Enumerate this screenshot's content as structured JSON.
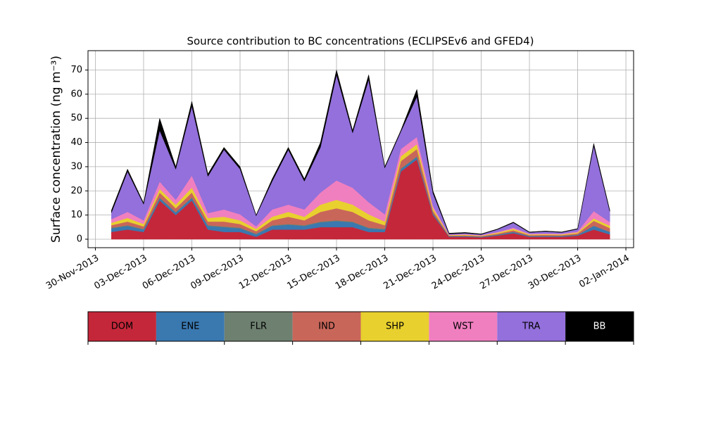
{
  "chart_data": {
    "type": "stacked_area",
    "title": "Source contribution to BC concentrations (ECLIPSEv6 and GFED4)",
    "y_label": "Surface concentration (ng m⁻³)",
    "x": [
      "2013-12-01",
      "2013-12-02",
      "2013-12-03",
      "2013-12-04",
      "2013-12-05",
      "2013-12-06",
      "2013-12-07",
      "2013-12-08",
      "2013-12-09",
      "2013-12-10",
      "2013-12-11",
      "2013-12-12",
      "2013-12-13",
      "2013-12-14",
      "2013-12-15",
      "2013-12-16",
      "2013-12-17",
      "2013-12-18",
      "2013-12-19",
      "2013-12-20",
      "2013-12-21",
      "2013-12-22",
      "2013-12-23",
      "2013-12-24",
      "2013-12-25",
      "2013-12-26",
      "2013-12-27",
      "2013-12-28",
      "2013-12-29",
      "2013-12-30",
      "2013-12-31",
      "2014-01-01"
    ],
    "series": [
      {
        "name": "DOM",
        "color": "#c4273a",
        "values": [
          3,
          4,
          3,
          16,
          10,
          16,
          4,
          3,
          3,
          1,
          4,
          4,
          4,
          5,
          5,
          5,
          3,
          3,
          28,
          33,
          10,
          1,
          1,
          0.8,
          1.5,
          2.5,
          1,
          1,
          1,
          1.5,
          4,
          2
        ]
      },
      {
        "name": "ENE",
        "color": "#3a78b0",
        "values": [
          1.5,
          1.5,
          1,
          1,
          1,
          1,
          1.5,
          2,
          1.5,
          1,
          1.5,
          2,
          1.5,
          2,
          2.5,
          2,
          1.5,
          1,
          1,
          1,
          0.5,
          0.2,
          0.2,
          0.2,
          0.3,
          0.5,
          0.3,
          0.3,
          0.3,
          0.3,
          1.5,
          1
        ]
      },
      {
        "name": "FLR",
        "color": "#6e8070",
        "values": [
          0.3,
          0.3,
          0.3,
          0.3,
          0.3,
          0.3,
          0.3,
          0.3,
          0.3,
          0.3,
          0.3,
          0.3,
          0.3,
          0.3,
          0.3,
          0.3,
          0.3,
          0.3,
          0.3,
          0.3,
          0.3,
          0.1,
          0.1,
          0.1,
          0.1,
          0.1,
          0.1,
          0.1,
          0.1,
          0.1,
          0.1,
          0.1
        ]
      },
      {
        "name": "IND",
        "color": "#c9665a",
        "values": [
          1,
          1.5,
          1,
          2,
          1.5,
          2,
          1.5,
          2,
          1.5,
          1,
          2,
          3,
          2,
          4,
          5,
          4,
          3,
          1.5,
          3,
          3,
          1,
          0.2,
          0.3,
          0.2,
          0.4,
          0.6,
          0.3,
          0.4,
          0.3,
          0.5,
          2,
          1.5
        ]
      },
      {
        "name": "SHP",
        "color": "#e8d02e",
        "values": [
          1,
          1.5,
          1,
          1.5,
          1.5,
          2,
          1.5,
          2,
          1.5,
          1,
          1.5,
          2,
          1.5,
          3,
          3.5,
          3,
          2.5,
          1.5,
          2,
          2,
          1,
          0.2,
          0.3,
          0.2,
          0.4,
          0.6,
          0.3,
          0.3,
          0.3,
          0.4,
          1,
          1
        ]
      },
      {
        "name": "WST",
        "color": "#f07fbf",
        "values": [
          1.5,
          2.5,
          1.5,
          3,
          2,
          5,
          2,
          3,
          2.5,
          1,
          3,
          3,
          3,
          5,
          8,
          7,
          5,
          3,
          3,
          3,
          1,
          0.2,
          0.2,
          0.2,
          0.3,
          0.5,
          0.3,
          0.3,
          0.3,
          0.4,
          3,
          1.5
        ]
      },
      {
        "name": "TRA",
        "color": "#9370db",
        "values": [
          2.7,
          16.7,
          6.7,
          21.2,
          12.7,
          28.7,
          15.2,
          24.7,
          18.7,
          4.4,
          11.7,
          22.7,
          11.7,
          18.7,
          43.7,
          22.7,
          50.7,
          19.2,
          7.2,
          16.7,
          5.2,
          0.3,
          0.4,
          0.3,
          1,
          2,
          0.5,
          0.8,
          0.5,
          1,
          27,
          4.4
        ]
      },
      {
        "name": "BB",
        "color": "#000000",
        "values": [
          1,
          1,
          0.5,
          5,
          1,
          2,
          1,
          1,
          1,
          0.3,
          1,
          1,
          1,
          2,
          2,
          1,
          2,
          0.5,
          0.5,
          3,
          1,
          0.3,
          0.3,
          0.2,
          0.2,
          0.3,
          0.2,
          0.2,
          0.2,
          0.2,
          1,
          0.5
        ]
      }
    ],
    "xlim": [
      "2013-11-29T13:00",
      "2014-01-02T11:30"
    ],
    "xticks": [
      {
        "value": "2013-11-30",
        "label": "30-Nov-2013"
      },
      {
        "value": "2013-12-03",
        "label": "03-Dec-2013"
      },
      {
        "value": "2013-12-06",
        "label": "06-Dec-2013"
      },
      {
        "value": "2013-12-09",
        "label": "09-Dec-2013"
      },
      {
        "value": "2013-12-12",
        "label": "12-Dec-2013"
      },
      {
        "value": "2013-12-15",
        "label": "15-Dec-2013"
      },
      {
        "value": "2013-12-18",
        "label": "18-Dec-2013"
      },
      {
        "value": "2013-12-21",
        "label": "21-Dec-2013"
      },
      {
        "value": "2013-12-24",
        "label": "24-Dec-2013"
      },
      {
        "value": "2013-12-27",
        "label": "27-Dec-2013"
      },
      {
        "value": "2013-12-30",
        "label": "30-Dec-2013"
      },
      {
        "value": "2014-01-02",
        "label": "02-Jan-2014"
      }
    ],
    "ylim": [
      -3.5,
      78
    ],
    "yticks": [
      0,
      10,
      20,
      30,
      40,
      50,
      60,
      70
    ],
    "grid": true
  }
}
